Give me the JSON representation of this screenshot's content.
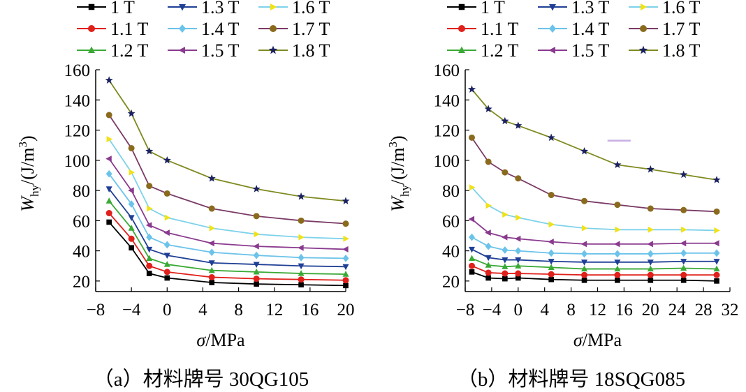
{
  "chart_data": [
    {
      "type": "line",
      "caption": "（a）材料牌号 30QG105",
      "xlabel_var": "σ",
      "xlabel_unit": "/MPa",
      "ylabel_var": "W",
      "ylabel_sub": "hy",
      "ylabel_unit": "/(J/m",
      "ylabel_exp": "3",
      "ylabel_close": ")",
      "xlim": [
        -8,
        20
      ],
      "ylim": [
        13,
        160
      ],
      "x_ticks": [
        -8,
        -4,
        0,
        4,
        8,
        12,
        16,
        20
      ],
      "x_tick_labels": [
        "−8",
        "−4",
        "0",
        "4",
        "8",
        "12",
        "16",
        "20"
      ],
      "y_ticks": [
        20,
        40,
        60,
        80,
        100,
        120,
        140,
        160
      ],
      "y_tick_labels": [
        "20",
        "40",
        "60",
        "80",
        "100",
        "120",
        "140",
        "160"
      ],
      "legend_position": "top",
      "x": [
        -6.5,
        -4,
        -2,
        0,
        5,
        10,
        15,
        20
      ],
      "series": [
        {
          "name": "1 T",
          "values": [
            59,
            42,
            25,
            22,
            19,
            18,
            17.5,
            17
          ]
        },
        {
          "name": "1.1 T",
          "values": [
            65,
            48,
            30,
            26,
            22.5,
            21.5,
            21,
            20.5
          ]
        },
        {
          "name": "1.2 T",
          "values": [
            73,
            55,
            35,
            31,
            27,
            26,
            25,
            24.5
          ]
        },
        {
          "name": "1.3 T",
          "values": [
            81,
            62,
            41,
            37,
            32,
            31,
            30,
            29.5
          ]
        },
        {
          "name": "1.4 T",
          "values": [
            91,
            71,
            49,
            44,
            39,
            37,
            35.5,
            35
          ]
        },
        {
          "name": "1.5 T",
          "values": [
            101,
            80,
            57,
            52,
            45,
            43,
            42,
            41
          ]
        },
        {
          "name": "1.6 T",
          "values": [
            114,
            92,
            68,
            62,
            55,
            51,
            49,
            48
          ]
        },
        {
          "name": "1.7 T",
          "values": [
            130,
            108,
            83,
            78,
            68,
            63,
            60,
            58
          ]
        },
        {
          "name": "1.8 T",
          "values": [
            153,
            131,
            106,
            100,
            88,
            81,
            76,
            73
          ]
        }
      ]
    },
    {
      "type": "line",
      "caption": "（b）材料牌号 18SQG085",
      "xlabel_var": "σ",
      "xlabel_unit": "/MPa",
      "ylabel_var": "W",
      "ylabel_sub": "hy",
      "ylabel_unit": "/(J/m",
      "ylabel_exp": "3",
      "ylabel_close": ")",
      "xlim": [
        -8,
        32
      ],
      "ylim": [
        13,
        160
      ],
      "x_ticks": [
        -8,
        -4,
        0,
        4,
        8,
        12,
        16,
        20,
        24,
        28,
        32
      ],
      "x_tick_labels": [
        "−8",
        "−4",
        "0",
        "4",
        "8",
        "12",
        "16",
        "20",
        "24",
        "28",
        "32"
      ],
      "y_ticks": [
        20,
        40,
        60,
        80,
        100,
        120,
        140,
        160
      ],
      "y_tick_labels": [
        "20",
        "40",
        "60",
        "80",
        "100",
        "120",
        "140",
        "160"
      ],
      "legend_position": "top",
      "x": [
        -7,
        -4.5,
        -2,
        0,
        5,
        10,
        15,
        20,
        25,
        30
      ],
      "series": [
        {
          "name": "1 T",
          "values": [
            26,
            22,
            21.5,
            22,
            21,
            20.5,
            20.5,
            20.5,
            20.5,
            20
          ]
        },
        {
          "name": "1.1 T",
          "values": [
            30,
            25.5,
            25,
            25,
            24.5,
            24,
            24,
            24,
            24,
            24
          ]
        },
        {
          "name": "1.2 T",
          "values": [
            35,
            30.5,
            29.5,
            30,
            29,
            28,
            28,
            28,
            28.5,
            28
          ]
        },
        {
          "name": "1.3 T",
          "values": [
            41,
            35.5,
            34,
            34,
            33,
            32.5,
            32.5,
            32.5,
            33,
            33
          ]
        },
        {
          "name": "1.4 T",
          "values": [
            49,
            43,
            40.5,
            40,
            38.5,
            38,
            38,
            38,
            38.5,
            38.5
          ]
        },
        {
          "name": "1.5 T",
          "values": [
            61,
            52,
            49,
            48,
            46,
            44.5,
            44.5,
            44.5,
            45,
            45
          ]
        },
        {
          "name": "1.6 T",
          "values": [
            82,
            70,
            64,
            62,
            57.5,
            55,
            54,
            54,
            54,
            53.5
          ]
        },
        {
          "name": "1.7 T",
          "values": [
            115,
            99,
            92,
            88,
            77,
            73,
            70.5,
            68,
            67,
            66
          ]
        },
        {
          "name": "1.8 T",
          "values": [
            147,
            134,
            126,
            123,
            115,
            106,
            97,
            94,
            90.5,
            87
          ]
        }
      ],
      "annotations": [
        {
          "kind": "stray-mark",
          "color": "#c8aee2",
          "x_range": [
            13.5,
            17
          ],
          "y": 113
        }
      ]
    }
  ],
  "series_styles": [
    {
      "color": "#000000",
      "marker": "square"
    },
    {
      "color": "#e0201b",
      "marker": "circle"
    },
    {
      "color": "#3aa935",
      "marker": "triangle-up"
    },
    {
      "color": "#1f3f95",
      "marker": "triangle-down"
    },
    {
      "color": "#6cc3ea",
      "marker": "diamond"
    },
    {
      "color": "#8a3a8e",
      "marker": "triangle-left"
    },
    {
      "color": "#f0e21a",
      "marker": "triangle-right"
    },
    {
      "color": "#8a6b1e",
      "marker": "circle"
    },
    {
      "color": "#1a2160",
      "marker": "star"
    }
  ],
  "line_colors": [
    "#000000",
    "#e0201b",
    "#3aa935",
    "#1f3f95",
    "#6cc3ea",
    "#8a3a8e",
    "#7ed2ea",
    "#7a3b66",
    "#7f8a20"
  ]
}
